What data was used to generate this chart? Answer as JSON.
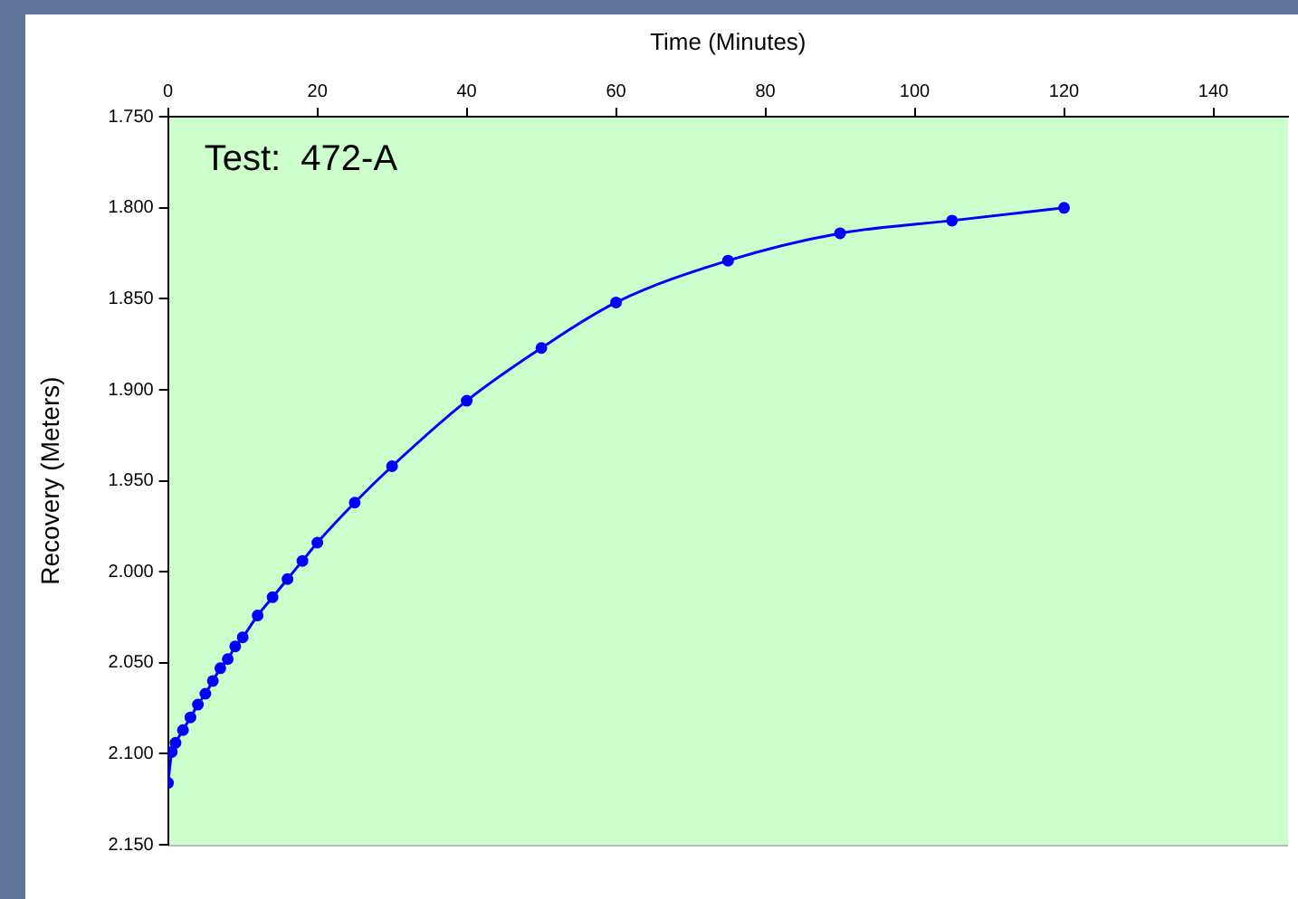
{
  "chart_data": {
    "type": "line",
    "xlabel": "Time (Minutes)",
    "ylabel": "Recovery (Meters)",
    "annotations": [
      "Test:  472-A"
    ],
    "x": [
      0,
      0.5,
      1,
      2,
      3,
      4,
      5,
      6,
      7,
      8,
      9,
      10,
      12,
      14,
      16,
      18,
      20,
      25,
      30,
      40,
      50,
      60,
      75,
      90,
      105,
      120
    ],
    "series": [
      {
        "color": "#0000ff",
        "values": [
          2.116,
          2.099,
          2.094,
          2.087,
          2.08,
          2.073,
          2.067,
          2.06,
          2.053,
          2.048,
          2.041,
          2.036,
          2.024,
          2.014,
          2.004,
          1.994,
          1.984,
          1.962,
          1.942,
          1.906,
          1.877,
          1.852,
          1.829,
          1.814,
          1.807,
          1.8
        ]
      }
    ],
    "xlim": [
      0,
      150
    ],
    "xticks": [
      0,
      20,
      40,
      60,
      80,
      100,
      120,
      140
    ],
    "ylim": [
      2.15,
      1.75
    ],
    "yticks": [
      {
        "value": 1.75,
        "label": "1.750"
      },
      {
        "value": 1.8,
        "label": "1.800"
      },
      {
        "value": 1.85,
        "label": "1.850"
      },
      {
        "value": 1.9,
        "label": "1.900"
      },
      {
        "value": 1.95,
        "label": "1.950"
      },
      {
        "value": 2.0,
        "label": "2.000"
      },
      {
        "value": 2.05,
        "label": "2.050"
      },
      {
        "value": 2.1,
        "label": "2.100"
      },
      {
        "value": 2.15,
        "label": "2.150"
      }
    ],
    "grid": false,
    "legend": false,
    "marker": "circle",
    "line_style": "solid"
  }
}
